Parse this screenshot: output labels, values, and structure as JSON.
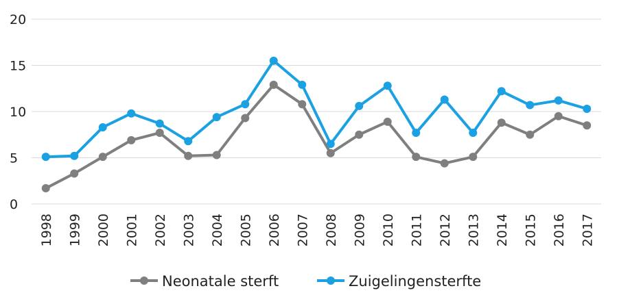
{
  "chart_data": {
    "type": "line",
    "title": "",
    "xlabel": "",
    "ylabel": "",
    "x": [
      "1998",
      "1999",
      "2000",
      "2001",
      "2002",
      "2003",
      "2004",
      "2005",
      "2006",
      "2007",
      "2008",
      "2009",
      "2010",
      "2011",
      "2012",
      "2013",
      "2014",
      "2015",
      "2016",
      "2017"
    ],
    "ylim": [
      0,
      20
    ],
    "yticks": [
      "0",
      "5",
      "10",
      "15",
      "20"
    ],
    "grid": true,
    "legend_position": "bottom",
    "series": [
      {
        "name": "Neonatale sterft",
        "color": "#7f7f7f",
        "values": [
          1.7,
          3.3,
          5.1,
          6.9,
          7.7,
          5.2,
          5.3,
          9.3,
          12.9,
          10.8,
          5.5,
          7.5,
          8.9,
          5.1,
          4.4,
          5.1,
          8.8,
          7.5,
          9.5,
          8.5
        ]
      },
      {
        "name": "Zuigelingensterfte",
        "color": "#1ba1e2",
        "values": [
          5.1,
          5.2,
          8.3,
          9.8,
          8.7,
          6.8,
          9.4,
          10.8,
          15.5,
          12.9,
          6.5,
          10.6,
          12.8,
          7.7,
          11.3,
          7.7,
          12.2,
          10.7,
          11.2,
          10.3
        ]
      }
    ]
  }
}
